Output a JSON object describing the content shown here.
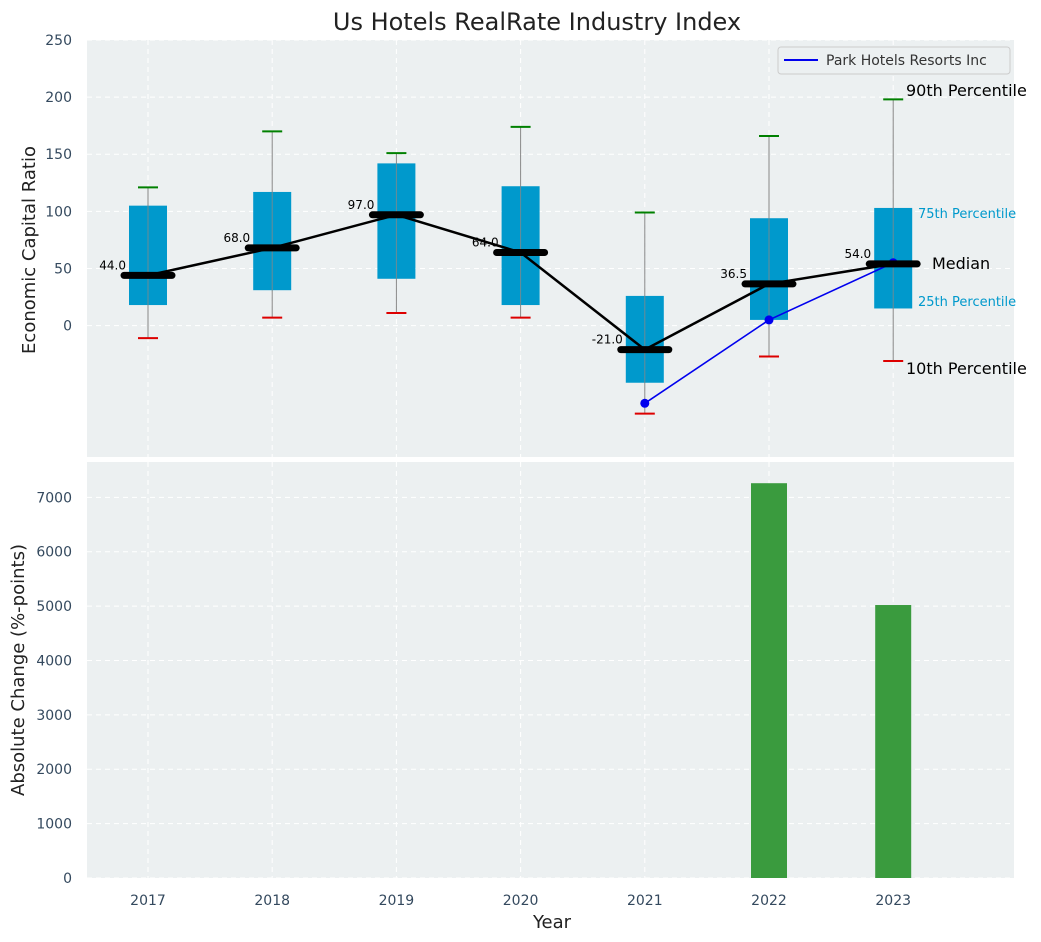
{
  "chart_data": {
    "title": "Us Hotels RealRate Industry Index",
    "colors": {
      "panel_bg": "#ecf0f1",
      "box": "#0099cc",
      "median": "#000000",
      "p90_cap": "#008000",
      "p10_cap": "#dd0000",
      "whisker": "#888888",
      "company": "#0000ee",
      "bar": "#3a9b3e"
    },
    "top": {
      "type": "box",
      "ylabel": "Economic Capital Ratio",
      "ylim": [
        -115,
        250
      ],
      "yticks": [
        0,
        50,
        100,
        150,
        200,
        250
      ],
      "categories": [
        "2017",
        "2018",
        "2019",
        "2020",
        "2021",
        "2022",
        "2023"
      ],
      "p10": [
        -11,
        7,
        11,
        7,
        -77,
        -27,
        -31
      ],
      "p25": [
        18,
        31,
        41,
        18,
        -50,
        5,
        15
      ],
      "median": [
        44,
        68,
        97,
        64,
        -21,
        36.5,
        54
      ],
      "p75": [
        105,
        117,
        142,
        122,
        26,
        94,
        103
      ],
      "p90": [
        121,
        170,
        151,
        174,
        99,
        166,
        198
      ],
      "median_labels": [
        "44.0",
        "68.0",
        "97.0",
        "64.0",
        "-21.0",
        "36.5",
        "54.0"
      ],
      "company": {
        "name": "Park Hotels Resorts Inc",
        "x": [
          "2021",
          "2022",
          "2023"
        ],
        "values": [
          -68,
          5,
          55
        ]
      },
      "legend": "top-right",
      "annotations": {
        "p90": "90th Percentile",
        "p75": "75th Percentile",
        "median": "Median",
        "p25": "25th Percentile",
        "p10": "10th Percentile"
      }
    },
    "bottom": {
      "type": "bar",
      "ylabel": "Absolute Change (%-points)",
      "xlabel": "Year",
      "ylim": [
        0,
        7650
      ],
      "yticks": [
        0,
        1000,
        2000,
        3000,
        4000,
        5000,
        6000,
        7000
      ],
      "categories": [
        "2017",
        "2018",
        "2019",
        "2020",
        "2021",
        "2022",
        "2023"
      ],
      "values": [
        0,
        0,
        0,
        0,
        0,
        7260,
        5020
      ]
    }
  }
}
